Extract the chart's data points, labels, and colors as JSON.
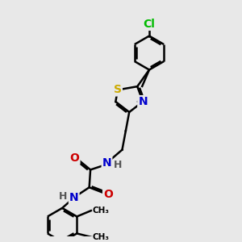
{
  "background_color": "#e8e8e8",
  "atom_colors": {
    "C": "#000000",
    "N": "#0000cc",
    "O": "#cc0000",
    "S": "#ccaa00",
    "Cl": "#00bb00",
    "H": "#555555"
  },
  "bond_color": "#000000",
  "bond_width": 1.8,
  "font_size_atoms": 10,
  "figsize": [
    3.0,
    3.0
  ],
  "dpi": 100
}
